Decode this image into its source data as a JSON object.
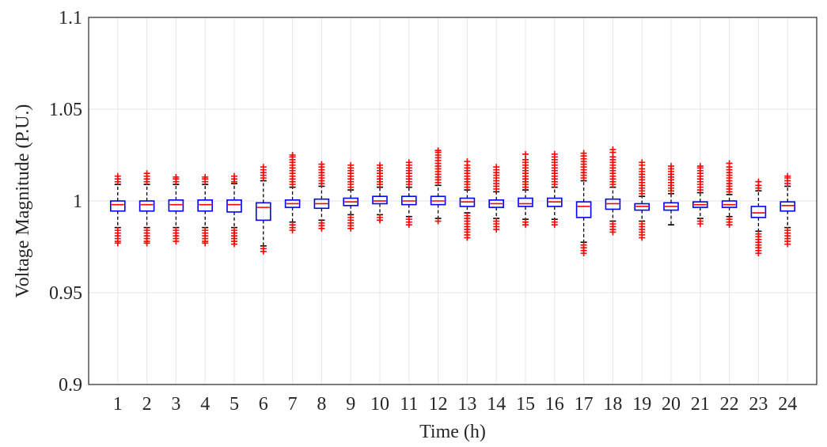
{
  "chart_data": {
    "type": "boxplot",
    "xlabel": "Time (h)",
    "ylabel": "Voltage Magnitude (P.U.)",
    "ylim": [
      0.9,
      1.1
    ],
    "yticks": [
      0.9,
      0.95,
      1,
      1.05,
      1.1
    ],
    "ytick_labels": [
      "0.9",
      "0.95",
      "1",
      "1.05",
      "1.1"
    ],
    "grid": true,
    "colors": {
      "box": "#0000ff",
      "median": "#ff0000",
      "whisker": "#000000",
      "outlier": "#ff0000"
    },
    "categories": [
      "1",
      "2",
      "3",
      "4",
      "5",
      "6",
      "7",
      "8",
      "9",
      "10",
      "11",
      "12",
      "13",
      "14",
      "15",
      "16",
      "17",
      "18",
      "19",
      "20",
      "21",
      "22",
      "23",
      "24"
    ],
    "boxes": [
      {
        "q1": 0.9945,
        "median": 0.998,
        "q3": 1.0,
        "whisker_low": 0.9855,
        "whisker_high": 1.009,
        "outliers_low": [
          0.984,
          0.9825,
          0.981,
          0.9795,
          0.978,
          0.977
        ],
        "outliers_high": [
          1.0105,
          1.012,
          1.0135
        ]
      },
      {
        "q1": 0.9945,
        "median": 0.998,
        "q3": 1.0,
        "whisker_low": 0.9855,
        "whisker_high": 1.009,
        "outliers_low": [
          0.984,
          0.9825,
          0.981,
          0.9795,
          0.978,
          0.977
        ],
        "outliers_high": [
          1.0105,
          1.012,
          1.0135,
          1.015
        ]
      },
      {
        "q1": 0.9945,
        "median": 0.998,
        "q3": 1.0005,
        "whisker_low": 0.9855,
        "whisker_high": 1.009,
        "outliers_low": [
          0.984,
          0.9825,
          0.981,
          0.9795,
          0.978
        ],
        "outliers_high": [
          1.0105,
          1.012,
          1.013
        ]
      },
      {
        "q1": 0.9945,
        "median": 0.998,
        "q3": 1.0005,
        "whisker_low": 0.9855,
        "whisker_high": 1.009,
        "outliers_low": [
          0.984,
          0.9825,
          0.981,
          0.9795,
          0.978,
          0.977
        ],
        "outliers_high": [
          1.0105,
          1.012,
          1.013
        ]
      },
      {
        "q1": 0.994,
        "median": 0.998,
        "q3": 1.0005,
        "whisker_low": 0.9855,
        "whisker_high": 1.0095,
        "outliers_low": [
          0.984,
          0.9825,
          0.981,
          0.9795,
          0.978,
          0.9765
        ],
        "outliers_high": [
          1.0105,
          1.012,
          1.0135
        ]
      },
      {
        "q1": 0.9895,
        "median": 0.9965,
        "q3": 0.999,
        "whisker_low": 0.9755,
        "whisker_high": 1.011,
        "outliers_low": [
          0.974,
          0.9725
        ],
        "outliers_high": [
          1.0125,
          1.014,
          1.0155,
          1.017,
          1.0185
        ]
      },
      {
        "q1": 0.9965,
        "median": 0.9985,
        "q3": 1.0005,
        "whisker_low": 0.9885,
        "whisker_high": 1.0075,
        "outliers_low": [
          0.987,
          0.9855,
          0.984
        ],
        "outliers_high": [
          1.009,
          1.0105,
          1.012,
          1.0135,
          1.015,
          1.0165,
          1.018,
          1.0195,
          1.021,
          1.0225,
          1.024,
          1.025
        ]
      },
      {
        "q1": 0.996,
        "median": 0.9985,
        "q3": 1.001,
        "whisker_low": 0.9895,
        "whisker_high": 1.008,
        "outliers_low": [
          0.988,
          0.9865,
          0.985
        ],
        "outliers_high": [
          1.0095,
          1.011,
          1.0125,
          1.014,
          1.0155,
          1.017,
          1.0185,
          1.02
        ]
      },
      {
        "q1": 0.9975,
        "median": 0.9995,
        "q3": 1.0015,
        "whisker_low": 0.9925,
        "whisker_high": 1.006,
        "outliers_low": [
          0.991,
          0.9895,
          0.988,
          0.9865,
          0.985
        ],
        "outliers_high": [
          1.0075,
          1.009,
          1.0105,
          1.012,
          1.0135,
          1.015,
          1.0165,
          1.018,
          1.0195
        ]
      },
      {
        "q1": 0.9985,
        "median": 1.0,
        "q3": 1.0025,
        "whisker_low": 0.9925,
        "whisker_high": 1.0075,
        "outliers_low": [
          0.991,
          0.9895
        ],
        "outliers_high": [
          1.009,
          1.0105,
          1.012,
          1.0135,
          1.015,
          1.0165,
          1.018,
          1.0195
        ]
      },
      {
        "q1": 0.998,
        "median": 1.0,
        "q3": 1.0025,
        "whisker_low": 0.9915,
        "whisker_high": 1.0075,
        "outliers_low": [
          0.99,
          0.9885,
          0.987
        ],
        "outliers_high": [
          1.009,
          1.0105,
          1.012,
          1.0135,
          1.015,
          1.0165,
          1.018,
          1.0195,
          1.021
        ]
      },
      {
        "q1": 0.998,
        "median": 1.0,
        "q3": 1.0025,
        "whisker_low": 0.9905,
        "whisker_high": 1.0085,
        "outliers_low": [
          0.989
        ],
        "outliers_high": [
          1.01,
          1.0115,
          1.013,
          1.0145,
          1.016,
          1.0175,
          1.019,
          1.0205,
          1.022,
          1.0235,
          1.025,
          1.0265,
          1.0275
        ]
      },
      {
        "q1": 0.997,
        "median": 0.9995,
        "q3": 1.0015,
        "whisker_low": 0.9935,
        "whisker_high": 1.006,
        "outliers_low": [
          0.992,
          0.9905,
          0.989,
          0.9875,
          0.986,
          0.9845,
          0.983,
          0.9815,
          0.98
        ],
        "outliers_high": [
          1.0075,
          1.009,
          1.0105,
          1.012,
          1.0135,
          1.015,
          1.0165,
          1.018,
          1.0195,
          1.0215
        ]
      },
      {
        "q1": 0.9965,
        "median": 0.9985,
        "q3": 1.0005,
        "whisker_low": 0.9905,
        "whisker_high": 1.005,
        "outliers_low": [
          0.989,
          0.9875,
          0.986,
          0.9845
        ],
        "outliers_high": [
          1.0065,
          1.008,
          1.0095,
          1.011,
          1.0125,
          1.014,
          1.0155,
          1.017,
          1.0185
        ]
      },
      {
        "q1": 0.997,
        "median": 0.9985,
        "q3": 1.0015,
        "whisker_low": 0.99,
        "whisker_high": 1.006,
        "outliers_low": [
          0.9885,
          0.987
        ],
        "outliers_high": [
          1.0075,
          1.009,
          1.0105,
          1.012,
          1.0135,
          1.015,
          1.0165,
          1.018,
          1.0195,
          1.021,
          1.0225,
          1.0255
        ]
      },
      {
        "q1": 0.997,
        "median": 0.9995,
        "q3": 1.0015,
        "whisker_low": 0.99,
        "whisker_high": 1.0075,
        "outliers_low": [
          0.9885,
          0.987
        ],
        "outliers_high": [
          1.009,
          1.0105,
          1.012,
          1.0135,
          1.015,
          1.0165,
          1.018,
          1.0195,
          1.021,
          1.0225,
          1.024,
          1.0255
        ]
      },
      {
        "q1": 0.991,
        "median": 0.997,
        "q3": 0.9995,
        "whisker_low": 0.9775,
        "whisker_high": 1.011,
        "outliers_low": [
          0.976,
          0.9745,
          0.973,
          0.9715
        ],
        "outliers_high": [
          1.0125,
          1.014,
          1.0155,
          1.017,
          1.0185,
          1.02,
          1.0215,
          1.023,
          1.0245,
          1.026
        ]
      },
      {
        "q1": 0.9955,
        "median": 0.9985,
        "q3": 1.001,
        "whisker_low": 0.989,
        "whisker_high": 1.0075,
        "outliers_low": [
          0.9875,
          0.986,
          0.9845,
          0.983
        ],
        "outliers_high": [
          1.009,
          1.0105,
          1.012,
          1.0135,
          1.015,
          1.0165,
          1.018,
          1.0195,
          1.021,
          1.0225,
          1.024,
          1.0265,
          1.028
        ]
      },
      {
        "q1": 0.995,
        "median": 0.997,
        "q3": 0.9985,
        "whisker_low": 0.989,
        "whisker_high": 1.0025,
        "outliers_low": [
          0.9875,
          0.986,
          0.9845,
          0.983,
          0.9815,
          0.98
        ],
        "outliers_high": [
          1.004,
          1.0055,
          1.007,
          1.0085,
          1.01,
          1.0115,
          1.013,
          1.0145,
          1.016,
          1.0175,
          1.0195,
          1.021
        ]
      },
      {
        "q1": 0.995,
        "median": 0.997,
        "q3": 0.999,
        "whisker_low": 0.987,
        "whisker_high": 1.004,
        "outliers_low": [],
        "outliers_high": [
          1.0055,
          1.007,
          1.0085,
          1.01,
          1.0115,
          1.013,
          1.0145,
          1.016,
          1.0175,
          1.019
        ]
      },
      {
        "q1": 0.9965,
        "median": 0.998,
        "q3": 0.9995,
        "whisker_low": 0.9905,
        "whisker_high": 1.0045,
        "outliers_low": [
          0.989,
          0.9875
        ],
        "outliers_high": [
          1.006,
          1.0075,
          1.009,
          1.0105,
          1.012,
          1.0135,
          1.015,
          1.0165,
          1.018,
          1.019
        ]
      },
      {
        "q1": 0.9965,
        "median": 0.998,
        "q3": 1.0,
        "whisker_low": 0.9915,
        "whisker_high": 1.0035,
        "outliers_low": [
          0.99,
          0.9885,
          0.987
        ],
        "outliers_high": [
          1.005,
          1.0065,
          1.008,
          1.0095,
          1.011,
          1.0125,
          1.014,
          1.0155,
          1.017,
          1.0185,
          1.0205
        ]
      },
      {
        "q1": 0.991,
        "median": 0.9935,
        "q3": 0.997,
        "whisker_low": 0.9835,
        "whisker_high": 1.0055,
        "outliers_low": [
          0.982,
          0.9805,
          0.979,
          0.9775,
          0.976,
          0.9745,
          0.973,
          0.9715
        ],
        "outliers_high": [
          1.007,
          1.0085,
          1.0105
        ]
      },
      {
        "q1": 0.9945,
        "median": 0.9975,
        "q3": 0.9995,
        "whisker_low": 0.9855,
        "whisker_high": 1.008,
        "outliers_low": [
          0.984,
          0.9825,
          0.981,
          0.9795,
          0.978,
          0.9765
        ],
        "outliers_high": [
          1.0095,
          1.011,
          1.0125,
          1.0135
        ]
      }
    ]
  }
}
